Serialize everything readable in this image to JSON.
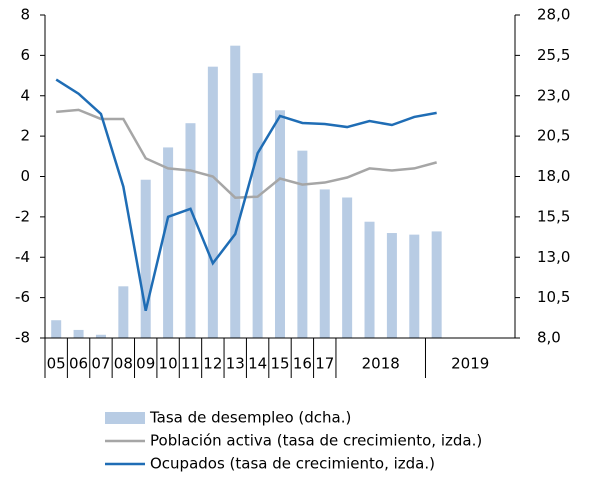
{
  "chart_data": {
    "type": "bar_line",
    "categories": [
      "05",
      "06",
      "07",
      "08",
      "09",
      "10",
      "11",
      "12",
      "13",
      "14",
      "15",
      "16",
      "17",
      null,
      null,
      null,
      null,
      null,
      null,
      null,
      null
    ],
    "groups": [
      {
        "label": "2018",
        "start": 13,
        "end": 16
      },
      {
        "label": "2019",
        "start": 17,
        "end": 20
      }
    ],
    "ylim": [
      -8,
      8
    ],
    "yticks": [
      -8,
      -6,
      -4,
      -2,
      0,
      2,
      4,
      6,
      8
    ],
    "y2lim": [
      8,
      28
    ],
    "y2ticks": [
      {
        "value": 8,
        "label": "8,0"
      },
      {
        "value": 10.5,
        "label": "10,5"
      },
      {
        "value": 13,
        "label": "13,0"
      },
      {
        "value": 15.5,
        "label": "15,5"
      },
      {
        "value": 18,
        "label": "18,0"
      },
      {
        "value": 20.5,
        "label": "20,5"
      },
      {
        "value": 23,
        "label": "23,0"
      },
      {
        "value": 25.5,
        "label": "25,5"
      },
      {
        "value": 28,
        "label": "28,0"
      }
    ],
    "series": [
      {
        "name": "Tasa de desempleo (dcha.)",
        "type": "bar",
        "axis": "y2",
        "color": "#b8cce4",
        "values": [
          9.1,
          8.5,
          8.2,
          11.2,
          17.8,
          19.8,
          21.3,
          24.8,
          26.1,
          24.4,
          22.1,
          19.6,
          17.2,
          16.7,
          15.2,
          14.5,
          14.4,
          14.6,
          null,
          null,
          null
        ]
      },
      {
        "name": "Población activa (tasa de crecimiento, izda.)",
        "type": "line",
        "axis": "y",
        "color": "#a6a6a6",
        "values": [
          3.2,
          3.3,
          2.85,
          2.85,
          0.9,
          0.4,
          0.3,
          0.0,
          -1.05,
          -1.0,
          -0.1,
          -0.4,
          -0.3,
          -0.05,
          0.4,
          0.3,
          0.4,
          0.7,
          null,
          null,
          null
        ]
      },
      {
        "name": "Ocupados (tasa de  crecimiento, izda.)",
        "type": "line",
        "axis": "y",
        "color": "#1f6db5",
        "values": [
          4.8,
          4.1,
          3.1,
          -0.5,
          -6.65,
          -2.0,
          -1.6,
          -4.3,
          -2.85,
          1.15,
          3.0,
          2.65,
          2.6,
          2.45,
          2.75,
          2.55,
          2.95,
          3.15,
          null,
          null,
          null
        ]
      }
    ]
  }
}
